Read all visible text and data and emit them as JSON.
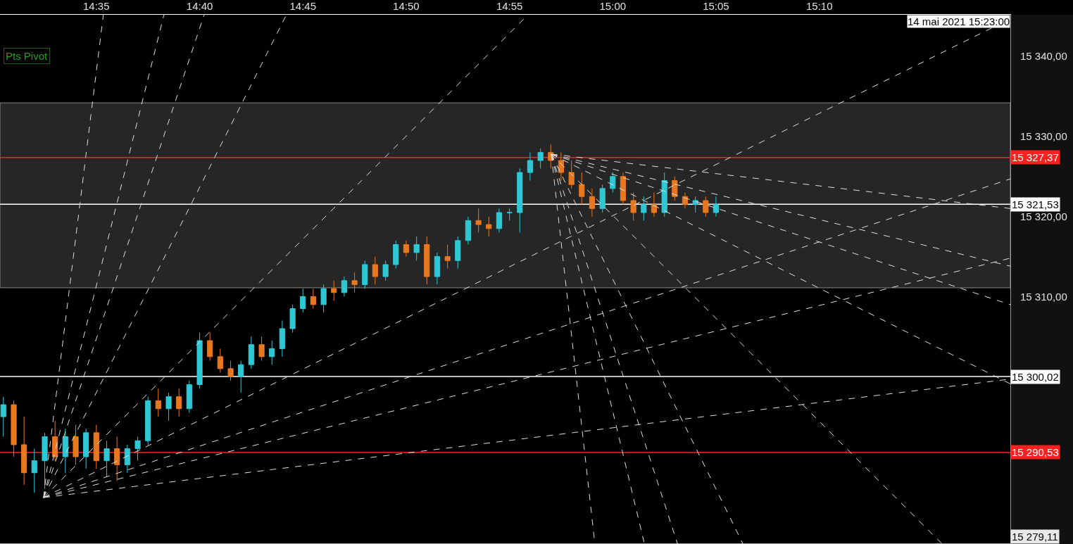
{
  "chart_data": {
    "type": "candlestick",
    "x": [
      14.5083,
      14.5167,
      14.525,
      14.5333,
      14.5417,
      14.55,
      14.5583,
      14.5667,
      14.575,
      14.5833,
      14.5917,
      14.6,
      14.6083,
      14.6167,
      14.625,
      14.6333,
      14.6417,
      14.65,
      14.6583,
      14.6667,
      14.675,
      14.6833,
      14.6917,
      14.7,
      14.7083,
      14.7167,
      14.725,
      14.7333,
      14.7417,
      14.75,
      14.7583,
      14.7667,
      14.775,
      14.7833,
      14.7917,
      14.8,
      14.8083,
      14.8167,
      14.825,
      14.8333,
      14.8417,
      14.85,
      14.8583,
      14.8667,
      14.875,
      14.8833,
      14.8917,
      14.9,
      14.9083,
      14.9167,
      14.925,
      14.9333,
      14.9417,
      14.95,
      14.9583,
      14.9667,
      14.975,
      14.9833,
      14.9917,
      15.0,
      15.0083,
      15.0167,
      15.025,
      15.0333,
      15.0417,
      15.05,
      15.0583,
      15.0667,
      15.075,
      15.0833
    ],
    "ohlc": [
      [
        15295.0,
        15297.5,
        15292.5,
        15296.5
      ],
      [
        15296.5,
        15297.0,
        15290.0,
        15291.5
      ],
      [
        15291.5,
        15295.0,
        15286.5,
        15288.0
      ],
      [
        15288.0,
        15291.0,
        15285.5,
        15289.5
      ],
      [
        15289.5,
        15293.0,
        15286.0,
        15292.5
      ],
      [
        15292.5,
        15294.5,
        15289.5,
        15290.0
      ],
      [
        15290.0,
        15293.5,
        15288.0,
        15292.5
      ],
      [
        15292.5,
        15294.0,
        15289.0,
        15290.0
      ],
      [
        15290.0,
        15293.5,
        15288.5,
        15293.0
      ],
      [
        15293.0,
        15294.0,
        15288.5,
        15289.5
      ],
      [
        15289.5,
        15292.0,
        15287.5,
        15291.0
      ],
      [
        15291.0,
        15292.5,
        15287.0,
        15289.0
      ],
      [
        15289.0,
        15291.5,
        15288.0,
        15291.0
      ],
      [
        15291.0,
        15292.5,
        15289.5,
        15292.0
      ],
      [
        15292.0,
        15297.5,
        15291.5,
        15297.0
      ],
      [
        15297.0,
        15298.5,
        15295.0,
        15296.0
      ],
      [
        15296.0,
        15298.0,
        15294.5,
        15297.5
      ],
      [
        15297.5,
        15298.5,
        15295.0,
        15296.0
      ],
      [
        15296.0,
        15299.5,
        15295.5,
        15299.0
      ],
      [
        15299.0,
        15305.5,
        15298.5,
        15304.5
      ],
      [
        15304.5,
        15305.5,
        15302.0,
        15302.5
      ],
      [
        15302.5,
        15303.5,
        15300.5,
        15301.0
      ],
      [
        15301.0,
        15302.0,
        15299.5,
        15300.0
      ],
      [
        15300.0,
        15302.0,
        15298.0,
        15301.5
      ],
      [
        15301.5,
        15305.0,
        15301.0,
        15304.0
      ],
      [
        15304.0,
        15305.0,
        15302.0,
        15302.5
      ],
      [
        15302.5,
        15304.5,
        15301.5,
        15303.5
      ],
      [
        15303.5,
        15307.0,
        15302.5,
        15306.0
      ],
      [
        15306.0,
        15309.0,
        15305.5,
        15308.5
      ],
      [
        15308.5,
        15311.0,
        15308.0,
        15310.0
      ],
      [
        15310.0,
        15311.0,
        15308.5,
        15309.0
      ],
      [
        15309.0,
        15311.5,
        15308.0,
        15311.0
      ],
      [
        15311.0,
        15312.0,
        15309.5,
        15310.5
      ],
      [
        15310.5,
        15312.5,
        15310.0,
        15312.0
      ],
      [
        15312.0,
        15313.0,
        15310.5,
        15311.5
      ],
      [
        15311.5,
        15314.5,
        15311.0,
        15314.0
      ],
      [
        15314.0,
        15315.0,
        15311.5,
        15312.5
      ],
      [
        15312.5,
        15314.5,
        15312.0,
        15314.0
      ],
      [
        15314.0,
        15317.0,
        15313.5,
        15316.5
      ],
      [
        15316.5,
        15317.0,
        15315.0,
        15315.5
      ],
      [
        15315.5,
        15317.5,
        15314.5,
        15316.5
      ],
      [
        15316.5,
        15317.5,
        15311.5,
        15312.5
      ],
      [
        15312.5,
        15315.5,
        15311.5,
        15315.0
      ],
      [
        15315.0,
        15316.5,
        15313.5,
        15314.5
      ],
      [
        15314.5,
        15317.5,
        15313.5,
        15317.0
      ],
      [
        15317.0,
        15320.0,
        15316.5,
        15319.5
      ],
      [
        15319.5,
        15321.0,
        15318.0,
        15319.0
      ],
      [
        15319.0,
        15320.0,
        15317.5,
        15318.5
      ],
      [
        15318.5,
        15321.0,
        15318.0,
        15320.5
      ],
      [
        15320.5,
        15321.0,
        15319.5,
        15320.5
      ],
      [
        15320.5,
        15326.0,
        15318.0,
        15325.5
      ],
      [
        15325.5,
        15328.0,
        15324.5,
        15327.0
      ],
      [
        15327.0,
        15328.5,
        15326.0,
        15328.0
      ],
      [
        15328.0,
        15329.0,
        15326.0,
        15327.0
      ],
      [
        15327.0,
        15328.0,
        15324.5,
        15325.5
      ],
      [
        15325.5,
        15327.0,
        15323.5,
        15324.0
      ],
      [
        15324.0,
        15325.5,
        15321.5,
        15322.5
      ],
      [
        15322.5,
        15323.5,
        15320.0,
        15321.0
      ],
      [
        15321.0,
        15324.0,
        15320.5,
        15323.5
      ],
      [
        15323.5,
        15325.5,
        15323.0,
        15325.0
      ],
      [
        15325.0,
        15325.5,
        15321.5,
        15322.0
      ],
      [
        15322.0,
        15323.0,
        15319.5,
        15320.5
      ],
      [
        15320.5,
        15322.5,
        15319.5,
        15321.5
      ],
      [
        15321.5,
        15323.0,
        15320.0,
        15320.5
      ],
      [
        15320.5,
        15325.5,
        15320.0,
        15324.5
      ],
      [
        15324.5,
        15325.0,
        15322.0,
        15322.5
      ],
      [
        15322.5,
        15323.0,
        15321.0,
        15321.5
      ],
      [
        15321.5,
        15322.5,
        15320.5,
        15322.0
      ],
      [
        15322.0,
        15322.5,
        15320.0,
        15320.5
      ],
      [
        15320.5,
        15322.5,
        15320.0,
        15321.5
      ]
    ],
    "colors": [
      "#2ec8d4",
      "#e8781f",
      "#e8781f",
      "#2ec8d4",
      "#2ec8d4",
      "#e8781f",
      "#2ec8d4",
      "#e8781f",
      "#2ec8d4",
      "#e8781f",
      "#2ec8d4",
      "#e8781f",
      "#2ec8d4",
      "#2ec8d4",
      "#2ec8d4",
      "#e8781f",
      "#2ec8d4",
      "#e8781f",
      "#2ec8d4",
      "#2ec8d4",
      "#e8781f",
      "#e8781f",
      "#e8781f",
      "#2ec8d4",
      "#2ec8d4",
      "#e8781f",
      "#2ec8d4",
      "#2ec8d4",
      "#2ec8d4",
      "#2ec8d4",
      "#e8781f",
      "#2ec8d4",
      "#e8781f",
      "#2ec8d4",
      "#e8781f",
      "#2ec8d4",
      "#e8781f",
      "#2ec8d4",
      "#2ec8d4",
      "#e8781f",
      "#2ec8d4",
      "#e8781f",
      "#2ec8d4",
      "#e8781f",
      "#2ec8d4",
      "#2ec8d4",
      "#e8781f",
      "#e8781f",
      "#2ec8d4",
      "#2ec8d4",
      "#2ec8d4",
      "#2ec8d4",
      "#2ec8d4",
      "#e8781f",
      "#e8781f",
      "#e8781f",
      "#e8781f",
      "#e8781f",
      "#2ec8d4",
      "#2ec8d4",
      "#e8781f",
      "#e8781f",
      "#2ec8d4",
      "#e8781f",
      "#2ec8d4",
      "#e8781f",
      "#e8781f",
      "#2ec8d4",
      "#e8781f",
      "#2ec8d4"
    ],
    "series": [
      {
        "type": "line",
        "x": [
          14.5407,
          14.589
        ],
        "values": [
          15284.9,
          15345.2
        ],
        "color": "#e0e0e0"
      },
      {
        "type": "line",
        "x": [
          14.5407,
          14.6379
        ],
        "values": [
          15284.9,
          15345.2
        ],
        "color": "#e0e0e0"
      },
      {
        "type": "line",
        "x": [
          14.5407,
          14.6703
        ],
        "values": [
          15284.9,
          15345.2
        ],
        "color": "#e0e0e0"
      },
      {
        "type": "line",
        "x": [
          14.5407,
          14.7367
        ],
        "values": [
          15284.9,
          15345.2
        ],
        "color": "#e0e0e0"
      },
      {
        "type": "line",
        "x": [
          14.5407,
          14.9316
        ],
        "values": [
          15284.9,
          15345.2
        ],
        "color": "#e0e0e0"
      },
      {
        "type": "line",
        "x": [
          14.5407,
          15.3208
        ],
        "values": [
          15284.9,
          15344.7
        ],
        "color": "#e0e0e0"
      },
      {
        "type": "line",
        "x": [
          14.5407,
          15.3208
        ],
        "values": [
          15284.9,
          15324.7
        ],
        "color": "#e0e0e0"
      },
      {
        "type": "line",
        "x": [
          14.5407,
          15.3208
        ],
        "values": [
          15284.9,
          15314.8
        ],
        "color": "#e0e0e0"
      },
      {
        "type": "line",
        "x": [
          14.5407,
          15.3208
        ],
        "values": [
          15284.9,
          15299.7
        ],
        "color": "#e0e0e0"
      },
      {
        "type": "line",
        "x": [
          14.9504,
          14.9856
        ],
        "values": [
          15327.8,
          15279.1
        ],
        "color": "#e0e0e0"
      },
      {
        "type": "line",
        "x": [
          14.9504,
          15.0256
        ],
        "values": [
          15327.8,
          15279.1
        ],
        "color": "#e0e0e0"
      },
      {
        "type": "line",
        "x": [
          14.9504,
          15.0523
        ],
        "values": [
          15327.8,
          15279.1
        ],
        "color": "#e0e0e0"
      },
      {
        "type": "line",
        "x": [
          14.9504,
          15.1051
        ],
        "values": [
          15327.8,
          15279.1
        ],
        "color": "#e0e0e0"
      },
      {
        "type": "line",
        "x": [
          14.9504,
          15.2659
        ],
        "values": [
          15327.8,
          15279.1
        ],
        "color": "#e0e0e0"
      },
      {
        "type": "line",
        "x": [
          14.9504,
          15.3208
        ],
        "values": [
          15327.8,
          15299.1
        ],
        "color": "#e0e0e0"
      },
      {
        "type": "line",
        "x": [
          14.9504,
          15.3208
        ],
        "values": [
          15327.8,
          15309.0
        ],
        "color": "#e0e0e0"
      },
      {
        "type": "line",
        "x": [
          14.9504,
          15.3208
        ],
        "values": [
          15327.8,
          15313.8
        ],
        "color": "#e0e0e0"
      },
      {
        "type": "line",
        "x": [
          14.9504,
          15.3208
        ],
        "values": [
          15327.8,
          15321.0
        ],
        "color": "#e0e0e0"
      }
    ],
    "line_style": "dashed",
    "xlim": [
      14.5056,
      15.3208
    ],
    "xticks": [
      {
        "value": 14.5833,
        "label": "14:35"
      },
      {
        "value": 14.6667,
        "label": "14:40"
      },
      {
        "value": 14.75,
        "label": "14:45"
      },
      {
        "value": 14.8333,
        "label": "14:50"
      },
      {
        "value": 14.9167,
        "label": "14:55"
      },
      {
        "value": 15.0,
        "label": "15:00"
      },
      {
        "value": 15.0833,
        "label": "15:05"
      },
      {
        "value": 15.1667,
        "label": "15:10"
      }
    ],
    "ylim": [
      15279.1,
      15345.2
    ],
    "yticks": [
      {
        "value": 15310,
        "label": "15 310,00"
      },
      {
        "value": 15320,
        "label": "15 320,00"
      },
      {
        "value": 15330,
        "label": "15 330,00"
      },
      {
        "value": 15340,
        "label": "15 340,00"
      }
    ],
    "bands": [
      {
        "axis": "y",
        "from": 15311.1,
        "to": 15334.2,
        "color": "#262626"
      }
    ],
    "ref_lines": [
      {
        "axis": "y",
        "value": 15327.37,
        "label": "15 327,37",
        "color": "#ff2020"
      },
      {
        "axis": "y",
        "value": 15321.53,
        "label": "15 321,53",
        "color": "#ffffff"
      },
      {
        "axis": "y",
        "value": 15300.02,
        "label": "15 300,02",
        "color": "#ffffff"
      },
      {
        "axis": "y",
        "value": 15290.53,
        "label": "15 290,53",
        "color": "#ff2020"
      },
      {
        "axis": "y",
        "value": 15279.11,
        "label": "15 279,11",
        "color": "#e8e8e8"
      }
    ],
    "annotations": [
      "14 mai 2021 15:23:00",
      "Pts Pivot"
    ],
    "grid": false
  }
}
